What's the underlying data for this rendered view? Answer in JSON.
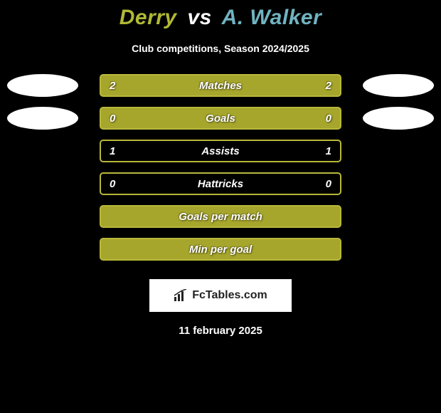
{
  "colors": {
    "background": "#000000",
    "title_left": "#b0b934",
    "title_vs": "#ffffff",
    "title_right": "#71b3c1",
    "bar_green": "#a6a52c",
    "bar_green_border": "#b9b83a",
    "bar_border_only": "#a6a52c",
    "avatar": "#ffffff",
    "text": "#ffffff",
    "subtitle": "#ffffff"
  },
  "title": {
    "left": "Derry",
    "vs": "vs",
    "right": "A. Walker"
  },
  "subtitle": "Club competitions, Season 2024/2025",
  "rows": [
    {
      "label": "Matches",
      "left": "2",
      "right": "2",
      "filled": true,
      "show_avatars": true
    },
    {
      "label": "Goals",
      "left": "0",
      "right": "0",
      "filled": true,
      "show_avatars": true
    },
    {
      "label": "Assists",
      "left": "1",
      "right": "1",
      "filled": false,
      "show_avatars": false
    },
    {
      "label": "Hattricks",
      "left": "0",
      "right": "0",
      "filled": false,
      "show_avatars": false
    },
    {
      "label": "Goals per match",
      "left": "",
      "right": "",
      "filled": true,
      "show_avatars": false
    },
    {
      "label": "Min per goal",
      "left": "",
      "right": "",
      "filled": true,
      "show_avatars": false
    }
  ],
  "logo": {
    "text": "FcTables.com"
  },
  "date": "11 february 2025"
}
